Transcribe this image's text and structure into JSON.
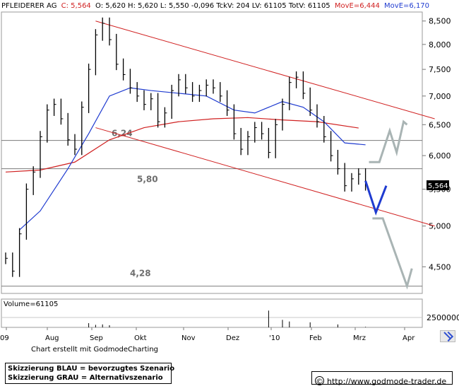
{
  "header": {
    "name": "PFLEIDERER AG",
    "close": "C: 5,564",
    "ohlc": "O: 5,620 H: 5,620 L: 5,550 -0,096 TckV: 204 LV: 61105 TotV: 61105",
    "ma_short": "MovE=6,444",
    "ma_long": "MovE=6,170",
    "colors": {
      "close": "#d02020",
      "ma_short": "#d02020",
      "ma_long": "#1f3bd0"
    }
  },
  "price_badge": "5,564",
  "levels": [
    {
      "label": "6,24",
      "value": 6.24
    },
    {
      "label": "5,80",
      "value": 5.8
    },
    {
      "label": "4,28",
      "value": 4.28
    }
  ],
  "volume_label": "Volume=61105",
  "credit": "Chart erstellt mit GodmodeCharting",
  "legend": {
    "blue": "Skizzierung BLAU = bevorzugtes Szenario",
    "grey": "Skizzierung GRAU = Alternativszenario"
  },
  "url": "http://www.godmode-trader.de",
  "copyright_symbol": "©",
  "icons": {
    "corner": "chart-arrow-icon"
  },
  "chart_data": {
    "type": "line",
    "y_axis_labels": [
      "8,500",
      "8,000",
      "7,500",
      "7,000",
      "6,500",
      "6,000",
      "5,500",
      "5,000",
      "4,500"
    ],
    "ylim": [
      4.2,
      8.7
    ],
    "y_scale": "log",
    "x_axis_labels": [
      "09",
      "Aug",
      "Sep",
      "Okt",
      "Nov",
      "Dez",
      "'10",
      "Feb",
      "Mrz",
      "Apr"
    ],
    "volume_axis_label": "2500000",
    "series": [
      {
        "name": "PFLEIDERER AG",
        "style": "bars",
        "color": "#000000",
        "x": [
          0,
          1,
          2,
          3,
          4,
          5,
          6,
          7,
          8,
          9,
          10,
          11,
          12,
          13,
          14,
          15,
          16,
          17,
          18,
          19,
          20,
          21,
          22,
          23,
          24,
          25,
          26,
          27,
          28,
          29,
          30,
          31,
          32,
          33,
          34,
          35,
          36,
          37,
          38,
          39,
          40,
          41,
          42,
          43,
          44,
          45,
          46,
          47,
          48,
          49,
          50,
          51,
          52
        ],
        "values": [
          4.6,
          4.45,
          4.9,
          5.5,
          5.75,
          6.3,
          6.75,
          6.85,
          6.6,
          6.25,
          6.1,
          6.8,
          7.5,
          8.2,
          8.45,
          8.1,
          7.6,
          7.4,
          7.15,
          7.0,
          6.85,
          6.95,
          6.55,
          6.7,
          7.1,
          7.3,
          7.15,
          7.0,
          7.1,
          7.2,
          7.15,
          7.0,
          6.75,
          6.35,
          6.1,
          6.3,
          6.45,
          6.35,
          6.05,
          6.5,
          6.85,
          7.25,
          7.35,
          7.05,
          6.75,
          6.55,
          6.3,
          6.0,
          5.8,
          5.55,
          5.65,
          5.72,
          5.564
        ]
      },
      {
        "name": "MovE 6,444",
        "style": "line",
        "color": "#d02020",
        "x": [
          0,
          5,
          10,
          15,
          20,
          25,
          30,
          35,
          40,
          45,
          51
        ],
        "values": [
          5.75,
          5.78,
          5.9,
          6.25,
          6.45,
          6.55,
          6.6,
          6.62,
          6.58,
          6.55,
          6.444
        ]
      },
      {
        "name": "MovE 6,170",
        "style": "line",
        "color": "#1f3bd0",
        "x": [
          2,
          5,
          9,
          12,
          15,
          18,
          21,
          25,
          29,
          33,
          36,
          40,
          43,
          46,
          49,
          52
        ],
        "values": [
          4.95,
          5.2,
          5.8,
          6.35,
          7.0,
          7.15,
          7.1,
          7.05,
          7.0,
          6.75,
          6.7,
          6.9,
          6.8,
          6.55,
          6.2,
          6.17
        ]
      }
    ],
    "trend_channel": {
      "upper": [
        [
          13,
          8.5
        ],
        [
          62,
          6.6
        ]
      ],
      "lower": [
        [
          13,
          6.45
        ],
        [
          62,
          5.0
        ]
      ],
      "color": "#d02020"
    },
    "horizontal_levels": [
      6.24,
      5.8,
      4.28
    ],
    "scenario_blue": {
      "color": "#1f3bd0",
      "x": [
        52,
        53.5,
        55
      ],
      "values": [
        5.62,
        5.18,
        5.55
      ]
    },
    "scenario_grey": [
      {
        "color": "#a9b4b4",
        "x": [
          52.5,
          54,
          55.5,
          56.5,
          57.5,
          58
        ],
        "values": [
          5.9,
          5.9,
          6.4,
          6.05,
          6.55,
          6.5
        ]
      },
      {
        "color": "#a9b4b4",
        "x": [
          53,
          54.5,
          58,
          58.7
        ],
        "values": [
          5.1,
          5.1,
          4.28,
          4.48
        ]
      }
    ],
    "volume": {
      "x": [
        12,
        13,
        14,
        15,
        38,
        40,
        41,
        44,
        48,
        52
      ],
      "values": [
        500000,
        300000,
        350000,
        250000,
        2000000,
        900000,
        700000,
        600000,
        350000,
        61105
      ]
    }
  }
}
